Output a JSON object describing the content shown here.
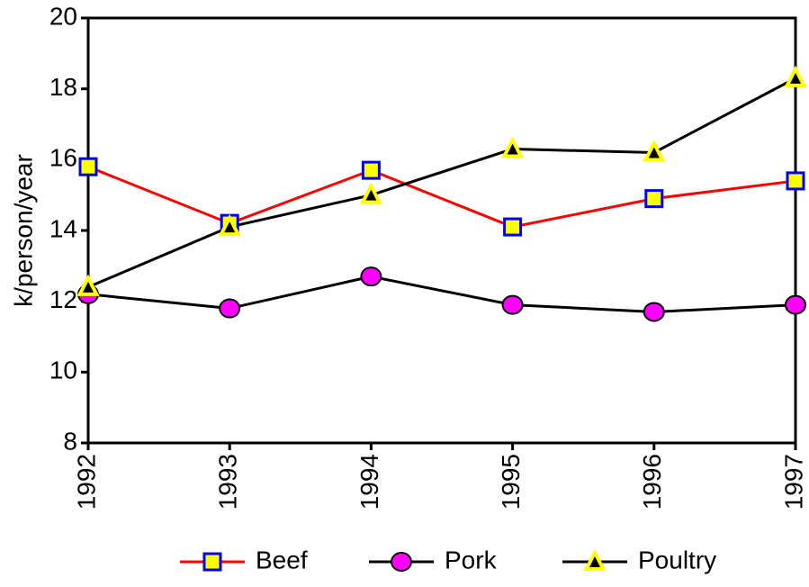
{
  "chart_data": {
    "type": "line",
    "y_label": "k/person/year",
    "categories": [
      "1992",
      "1993",
      "1994",
      "1995",
      "1996",
      "1997"
    ],
    "series": [
      {
        "name": "Beef",
        "color": "#ff0000",
        "marker": "square",
        "marker_fill": "#ffff00",
        "marker_stroke": "#0000ff",
        "values": [
          15.8,
          14.2,
          15.7,
          14.1,
          14.9,
          15.4
        ]
      },
      {
        "name": "Pork",
        "color": "#000000",
        "marker": "circle",
        "marker_fill": "#ff00ff",
        "marker_stroke": "#000000",
        "values": [
          12.2,
          11.8,
          12.7,
          11.9,
          11.7,
          11.9
        ]
      },
      {
        "name": "Poultry",
        "color": "#000000",
        "marker": "triangle",
        "marker_fill": "#ffff00",
        "marker_stroke": "#000000",
        "values": [
          12.4,
          14.1,
          15.0,
          16.3,
          16.2,
          18.3
        ]
      }
    ],
    "ylim": [
      8,
      20
    ],
    "yticks": [
      8,
      10,
      12,
      14,
      16,
      18,
      20
    ],
    "grid": false,
    "legend": "bottom"
  }
}
